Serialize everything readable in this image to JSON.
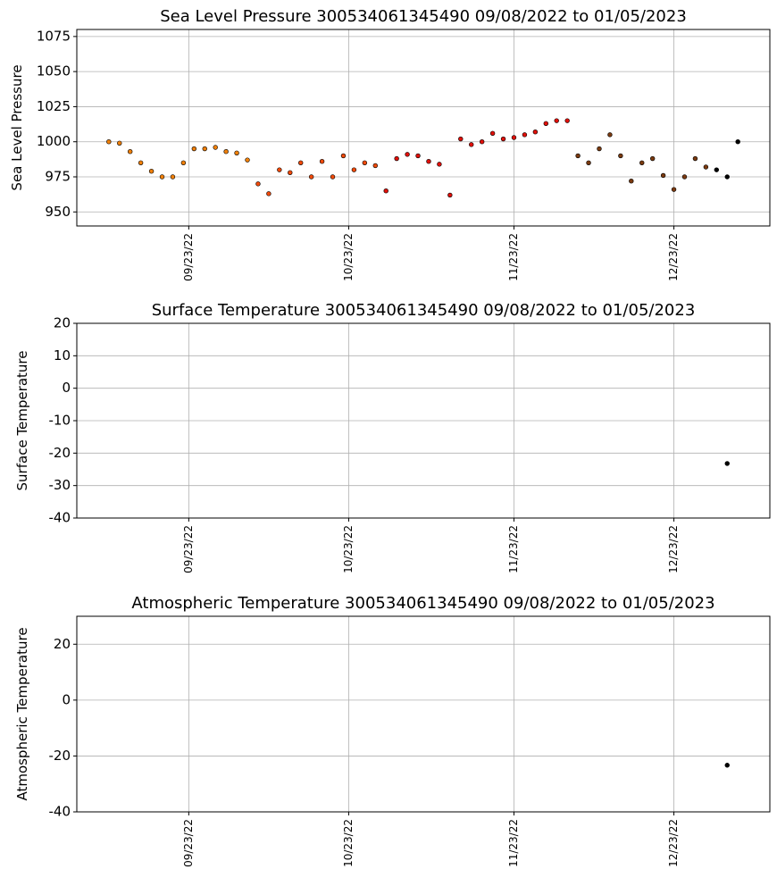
{
  "chart_data": [
    {
      "type": "scatter",
      "title": "Sea Level Pressure 300534061345490  09/08/2022 to 01/05/2023",
      "y_label": "Sea Level Pressure",
      "xlim": [
        "09/02/22",
        "01/10/23"
      ],
      "xticks": [
        "09/23/22",
        "10/23/22",
        "11/23/22",
        "12/23/22"
      ],
      "ylim": [
        940,
        1080
      ],
      "yticks": [
        950,
        975,
        1000,
        1025,
        1050,
        1075
      ],
      "grid": true,
      "series": [
        {
          "color": "#f0800a",
          "x": [
            "09/08/22",
            "09/10/22",
            "09/12/22",
            "09/14/22",
            "09/16/22",
            "09/18/22",
            "09/20/22",
            "09/22/22",
            "09/24/22",
            "09/26/22",
            "09/28/22",
            "09/30/22",
            "10/02/22",
            "10/04/22"
          ],
          "values": [
            1000,
            999,
            993,
            985,
            979,
            975,
            975,
            985,
            995,
            995,
            996,
            993,
            992,
            987
          ]
        },
        {
          "color": "#f04a0a",
          "x": [
            "10/06/22",
            "10/08/22",
            "10/10/22",
            "10/12/22",
            "10/14/22",
            "10/16/22",
            "10/18/22",
            "10/20/22",
            "10/22/22",
            "10/24/22",
            "10/26/22",
            "10/28/22"
          ],
          "values": [
            970,
            963,
            980,
            978,
            985,
            975,
            986,
            975,
            990,
            980,
            985,
            983
          ]
        },
        {
          "color": "#e0100a",
          "x": [
            "10/30/22",
            "11/01/22",
            "11/03/22",
            "11/05/22",
            "11/07/22",
            "11/09/22",
            "11/11/22",
            "11/13/22",
            "11/15/22",
            "11/17/22",
            "11/19/22",
            "11/21/22",
            "11/23/22",
            "11/25/22",
            "11/27/22",
            "11/29/22",
            "12/01/22",
            "12/03/22"
          ],
          "values": [
            965,
            988,
            991,
            990,
            986,
            984,
            962,
            1002,
            998,
            1000,
            1006,
            1002,
            1003,
            1005,
            1007,
            1013,
            1015,
            1015
          ]
        },
        {
          "color": "#7a3a10",
          "x": [
            "12/05/22",
            "12/07/22",
            "12/09/22",
            "12/11/22",
            "12/13/22",
            "12/15/22",
            "12/17/22",
            "12/19/22",
            "12/21/22",
            "12/23/22",
            "12/25/22",
            "12/27/22",
            "12/29/22"
          ],
          "values": [
            990,
            985,
            995,
            1005,
            990,
            972,
            985,
            988,
            976,
            966,
            975,
            988,
            982
          ]
        },
        {
          "color": "#000000",
          "x": [
            "12/31/22",
            "01/02/23",
            "01/04/23"
          ],
          "values": [
            980,
            975,
            1000
          ]
        }
      ]
    },
    {
      "type": "scatter",
      "title": "Surface Temperature 300534061345490  09/08/2022 to 01/05/2023",
      "y_label": "Surface Temperature",
      "xlim": [
        "09/02/22",
        "01/10/23"
      ],
      "xticks": [
        "09/23/22",
        "10/23/22",
        "11/23/22",
        "12/23/22"
      ],
      "ylim": [
        -40,
        20
      ],
      "yticks": [
        -40,
        -30,
        -20,
        -10,
        0,
        10,
        20
      ],
      "grid": true,
      "series": [
        {
          "color": "#000000",
          "x": [
            "01/02/23"
          ],
          "values": [
            -23.2
          ]
        }
      ]
    },
    {
      "type": "scatter",
      "title": "Atmospheric Temperature 300534061345490  09/08/2022 to 01/05/2023",
      "y_label": "Atmospheric Temperature",
      "xlim": [
        "09/02/22",
        "01/10/23"
      ],
      "xticks": [
        "09/23/22",
        "10/23/22",
        "11/23/22",
        "12/23/22"
      ],
      "ylim": [
        -40,
        30
      ],
      "yticks": [
        -40,
        -20,
        0,
        20
      ],
      "grid": true,
      "series": [
        {
          "color": "#000000",
          "x": [
            "01/02/23"
          ],
          "values": [
            -23.3
          ]
        }
      ]
    }
  ]
}
